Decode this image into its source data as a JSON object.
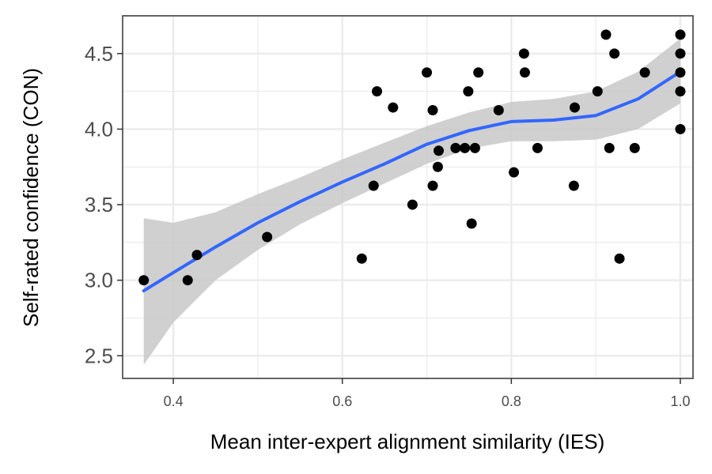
{
  "chart_data": {
    "type": "scatter",
    "xlabel": "Mean inter-expert alignment similarity (IES)",
    "ylabel": "Self-rated confidence (CON)",
    "xlim": [
      0.34,
      1.015
    ],
    "ylim": [
      2.35,
      4.75
    ],
    "x_ticks": [
      0.4,
      0.6,
      0.8,
      1.0
    ],
    "x_tick_labels": [
      "0.4",
      "0.6",
      "0.8",
      "1.0"
    ],
    "y_ticks": [
      2.5,
      3.0,
      3.5,
      4.0,
      4.5
    ],
    "y_tick_labels": [
      "2.5",
      "3.0",
      "3.5",
      "4.0",
      "4.5"
    ],
    "grid": true,
    "colors": {
      "points": "#000000",
      "smooth_line": "#3366ff",
      "confidence_band": "#c8c8c8",
      "grid": "#ebebeb",
      "panel_border": "#333333"
    },
    "points": [
      {
        "x": 0.365,
        "y": 3.0
      },
      {
        "x": 0.417,
        "y": 3.0
      },
      {
        "x": 0.428,
        "y": 3.167
      },
      {
        "x": 0.511,
        "y": 3.286
      },
      {
        "x": 0.623,
        "y": 3.143
      },
      {
        "x": 0.637,
        "y": 3.625
      },
      {
        "x": 0.641,
        "y": 4.25
      },
      {
        "x": 0.66,
        "y": 4.143
      },
      {
        "x": 0.683,
        "y": 3.5
      },
      {
        "x": 0.7,
        "y": 4.375
      },
      {
        "x": 0.707,
        "y": 3.625
      },
      {
        "x": 0.707,
        "y": 4.125
      },
      {
        "x": 0.713,
        "y": 3.75
      },
      {
        "x": 0.714,
        "y": 3.857
      },
      {
        "x": 0.734,
        "y": 3.875
      },
      {
        "x": 0.745,
        "y": 3.875
      },
      {
        "x": 0.749,
        "y": 4.25
      },
      {
        "x": 0.753,
        "y": 3.375
      },
      {
        "x": 0.757,
        "y": 3.875
      },
      {
        "x": 0.761,
        "y": 4.375
      },
      {
        "x": 0.785,
        "y": 4.125
      },
      {
        "x": 0.803,
        "y": 3.714
      },
      {
        "x": 0.815,
        "y": 4.5
      },
      {
        "x": 0.816,
        "y": 4.375
      },
      {
        "x": 0.831,
        "y": 3.875
      },
      {
        "x": 0.874,
        "y": 3.625
      },
      {
        "x": 0.875,
        "y": 4.143
      },
      {
        "x": 0.902,
        "y": 4.25
      },
      {
        "x": 0.912,
        "y": 4.625
      },
      {
        "x": 0.916,
        "y": 3.875
      },
      {
        "x": 0.922,
        "y": 4.5
      },
      {
        "x": 0.928,
        "y": 3.143
      },
      {
        "x": 0.946,
        "y": 3.875
      },
      {
        "x": 0.958,
        "y": 4.375
      },
      {
        "x": 1.0,
        "y": 4.625
      },
      {
        "x": 1.0,
        "y": 4.5
      },
      {
        "x": 1.0,
        "y": 4.375
      },
      {
        "x": 1.0,
        "y": 4.25
      },
      {
        "x": 1.0,
        "y": 4.0
      }
    ],
    "smooth": [
      {
        "x": 0.365,
        "y": 2.93,
        "lower": 2.44,
        "upper": 3.41
      },
      {
        "x": 0.4,
        "y": 3.05,
        "lower": 2.72,
        "upper": 3.38
      },
      {
        "x": 0.45,
        "y": 3.22,
        "lower": 3.0,
        "upper": 3.45
      },
      {
        "x": 0.5,
        "y": 3.38,
        "lower": 3.2,
        "upper": 3.57
      },
      {
        "x": 0.55,
        "y": 3.52,
        "lower": 3.37,
        "upper": 3.68
      },
      {
        "x": 0.6,
        "y": 3.65,
        "lower": 3.51,
        "upper": 3.8
      },
      {
        "x": 0.65,
        "y": 3.77,
        "lower": 3.64,
        "upper": 3.91
      },
      {
        "x": 0.7,
        "y": 3.9,
        "lower": 3.77,
        "upper": 4.02
      },
      {
        "x": 0.75,
        "y": 3.99,
        "lower": 3.87,
        "upper": 4.11
      },
      {
        "x": 0.8,
        "y": 4.05,
        "lower": 3.92,
        "upper": 4.18
      },
      {
        "x": 0.85,
        "y": 4.06,
        "lower": 3.92,
        "upper": 4.2
      },
      {
        "x": 0.9,
        "y": 4.09,
        "lower": 3.93,
        "upper": 4.25
      },
      {
        "x": 0.95,
        "y": 4.2,
        "lower": 4.0,
        "upper": 4.38
      },
      {
        "x": 1.0,
        "y": 4.38,
        "lower": 4.17,
        "upper": 4.6
      }
    ]
  }
}
